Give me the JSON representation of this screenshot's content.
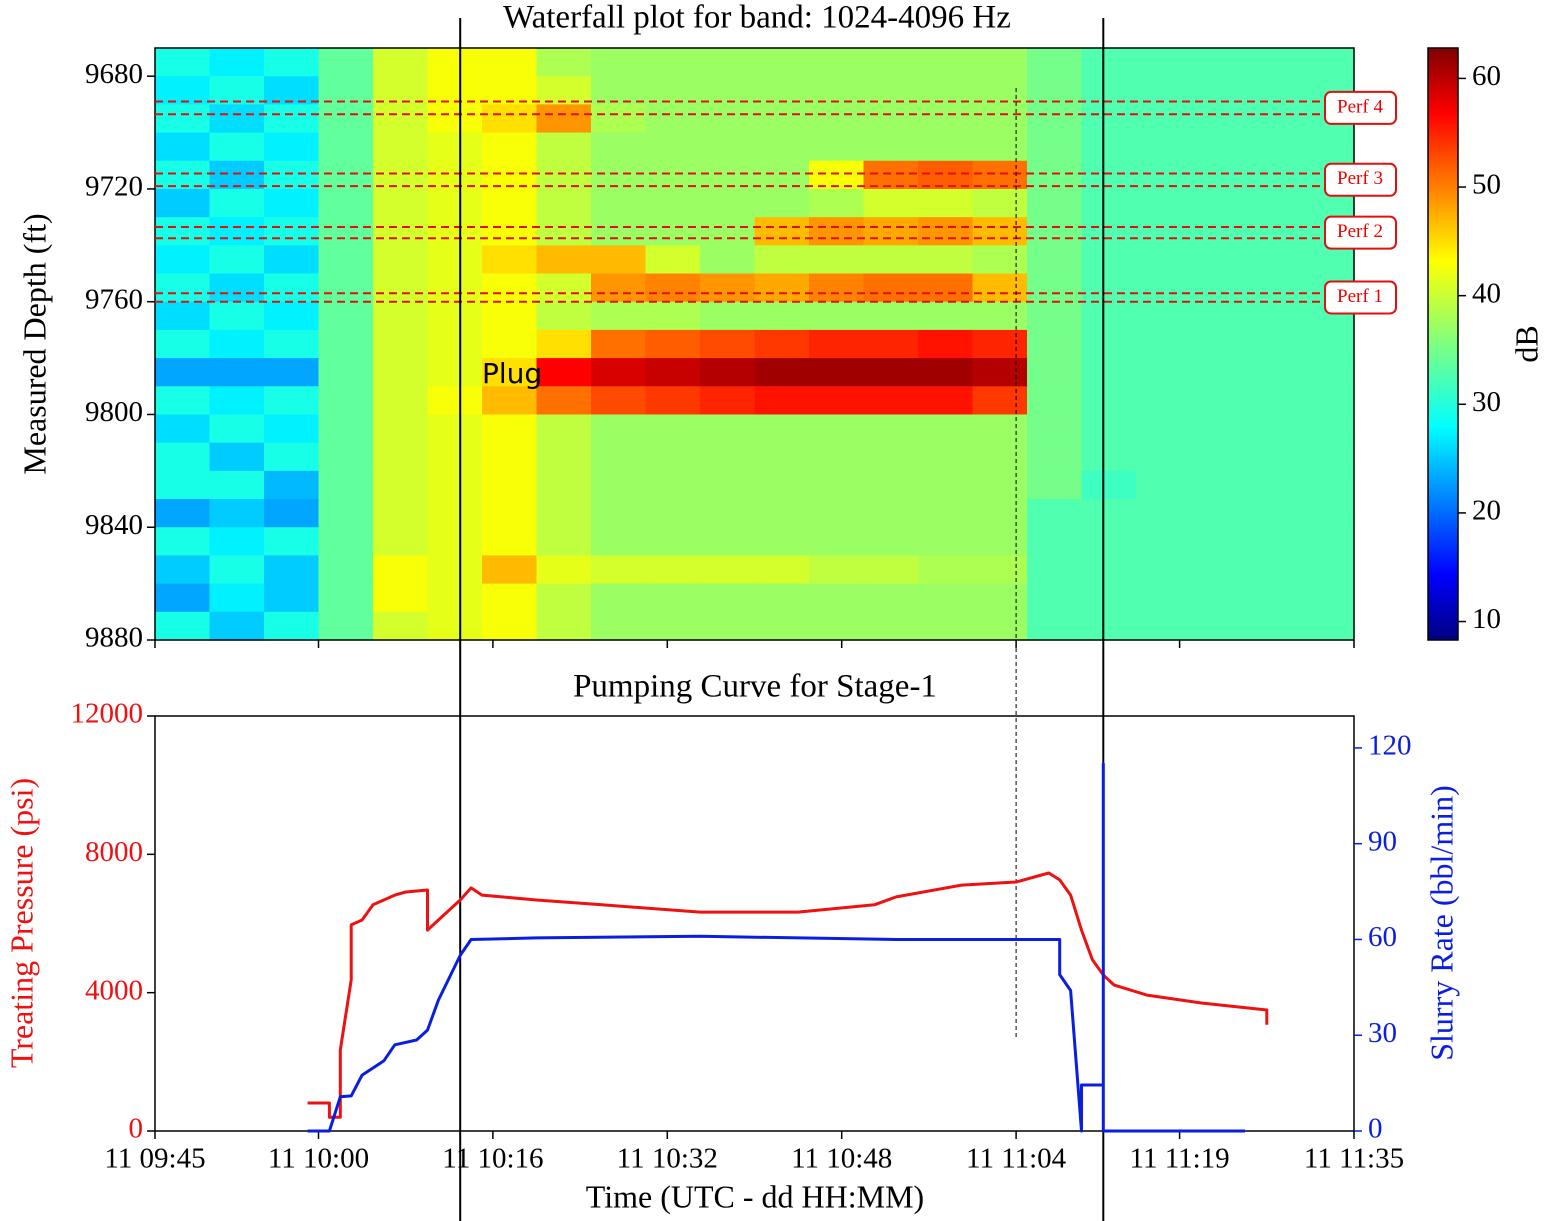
{
  "chart_data": [
    {
      "type": "heatmap",
      "title": "Waterfall plot for band: 1024-4096 Hz",
      "ylabel": "Measured Depth (ft)",
      "xlim": [
        "11 09:45",
        "11 11:35"
      ],
      "ylim": [
        9880,
        9670
      ],
      "yticks": [
        9680,
        9720,
        9760,
        9800,
        9840,
        9880
      ],
      "xbins": [
        "11 09:45",
        "11 09:50",
        "11 09:55",
        "11 10:00",
        "11 10:05",
        "11 10:10",
        "11 10:15",
        "11 10:20",
        "11 10:25",
        "11 10:30",
        "11 10:35",
        "11 10:40",
        "11 10:45",
        "11 10:50",
        "11 10:55",
        "11 11:00",
        "11 11:05",
        "11 11:10",
        "11 11:15",
        "11 11:20",
        "11 11:25",
        "11 11:30",
        "11 11:35"
      ],
      "ybins": [
        9670,
        9680,
        9690,
        9700,
        9710,
        9720,
        9730,
        9740,
        9750,
        9760,
        9770,
        9780,
        9790,
        9800,
        9810,
        9820,
        9830,
        9840,
        9850,
        9860,
        9870,
        9880
      ],
      "z": [
        [
          30,
          28,
          30,
          34,
          40,
          42,
          42,
          38,
          37,
          37,
          37,
          37,
          37,
          37,
          37,
          37,
          35,
          33,
          33,
          33,
          33,
          33
        ],
        [
          28,
          30,
          27,
          34,
          40,
          42,
          42,
          40,
          37,
          37,
          37,
          37,
          37,
          37,
          37,
          37,
          35,
          33,
          33,
          33,
          33,
          33
        ],
        [
          30,
          27,
          30,
          34,
          40,
          42,
          44,
          48,
          38,
          37,
          37,
          37,
          37,
          37,
          37,
          37,
          35,
          33,
          33,
          33,
          33,
          33
        ],
        [
          27,
          30,
          28,
          34,
          40,
          41,
          42,
          39,
          37,
          37,
          37,
          37,
          37,
          37,
          37,
          37,
          35,
          33,
          33,
          33,
          33,
          33
        ],
        [
          30,
          26,
          30,
          34,
          40,
          41,
          42,
          39,
          37,
          37,
          37,
          37,
          42,
          50,
          51,
          50,
          35,
          33,
          33,
          33,
          33,
          33
        ],
        [
          26,
          30,
          28,
          34,
          40,
          41,
          42,
          39,
          37,
          37,
          37,
          37,
          38,
          40,
          40,
          39,
          35,
          33,
          33,
          33,
          33,
          33
        ],
        [
          30,
          28,
          30,
          34,
          40,
          41,
          42,
          39,
          37,
          37,
          37,
          46,
          48,
          47,
          48,
          46,
          35,
          33,
          33,
          33,
          33,
          33
        ],
        [
          28,
          30,
          27,
          34,
          40,
          41,
          44,
          46,
          46,
          40,
          37,
          39,
          39,
          39,
          39,
          38,
          35,
          33,
          33,
          33,
          33,
          33
        ],
        [
          30,
          27,
          30,
          34,
          40,
          41,
          42,
          40,
          48,
          49,
          48,
          47,
          49,
          50,
          50,
          46,
          35,
          33,
          33,
          33,
          33,
          33
        ],
        [
          27,
          30,
          28,
          34,
          40,
          41,
          42,
          39,
          38,
          38,
          37,
          37,
          37,
          37,
          37,
          37,
          35,
          33,
          33,
          33,
          33,
          33
        ],
        [
          30,
          28,
          30,
          34,
          40,
          41,
          42,
          44,
          50,
          51,
          52,
          53,
          54,
          54,
          55,
          54,
          35,
          33,
          33,
          33,
          33,
          33
        ],
        [
          24,
          24,
          24,
          34,
          40,
          41,
          44,
          56,
          58,
          59,
          60,
          61,
          61,
          61,
          61,
          60,
          35,
          33,
          33,
          33,
          33,
          33
        ],
        [
          30,
          28,
          30,
          34,
          40,
          42,
          46,
          50,
          52,
          53,
          54,
          55,
          55,
          55,
          55,
          53,
          35,
          33,
          33,
          33,
          33,
          33
        ],
        [
          27,
          30,
          28,
          34,
          40,
          41,
          42,
          39,
          37,
          37,
          37,
          37,
          37,
          37,
          37,
          37,
          35,
          33,
          33,
          33,
          33,
          33
        ],
        [
          30,
          26,
          30,
          34,
          40,
          41,
          42,
          39,
          37,
          37,
          37,
          37,
          37,
          37,
          37,
          37,
          35,
          33,
          33,
          33,
          33,
          33
        ],
        [
          30,
          30,
          25,
          34,
          40,
          41,
          42,
          39,
          37,
          37,
          37,
          37,
          37,
          37,
          37,
          37,
          35,
          32,
          33,
          33,
          33,
          33
        ],
        [
          24,
          26,
          24,
          34,
          40,
          41,
          42,
          39,
          37,
          37,
          37,
          37,
          37,
          37,
          37,
          37,
          33,
          33,
          33,
          33,
          33,
          33
        ],
        [
          30,
          28,
          30,
          34,
          40,
          41,
          42,
          39,
          37,
          37,
          37,
          37,
          37,
          37,
          37,
          37,
          33,
          33,
          33,
          33,
          33,
          33
        ],
        [
          26,
          30,
          26,
          34,
          42,
          41,
          46,
          41,
          40,
          40,
          40,
          40,
          39,
          39,
          38,
          38,
          33,
          33,
          33,
          33,
          33,
          33
        ],
        [
          24,
          28,
          26,
          34,
          42,
          41,
          42,
          39,
          37,
          37,
          37,
          37,
          37,
          37,
          37,
          37,
          33,
          33,
          33,
          33,
          33,
          33
        ],
        [
          30,
          26,
          30,
          34,
          40,
          41,
          42,
          39,
          37,
          37,
          37,
          37,
          37,
          37,
          37,
          37,
          33,
          33,
          33,
          33,
          33,
          33
        ]
      ],
      "colormap": "jet",
      "clim": [
        8.3,
        62.8
      ],
      "cticks": [
        10,
        20,
        30,
        40,
        50,
        60
      ],
      "clabel": "dB",
      "perfs": [
        {
          "label": "Perf 1",
          "depths": [
            9757,
            9760
          ]
        },
        {
          "label": "Perf 2",
          "depths": [
            9733.5,
            9737.5
          ]
        },
        {
          "label": "Perf 3",
          "depths": [
            9714.5,
            9719
          ]
        },
        {
          "label": "Perf 4",
          "depths": [
            9689,
            9693.5
          ]
        }
      ],
      "perf_color": "#e01010",
      "annotation": {
        "text": "Plug",
        "x": "11 10:15",
        "y": 9786
      },
      "vlines": [
        "11 10:13",
        "11 11:12"
      ],
      "dashed_vline": "11 11:04"
    },
    {
      "type": "line",
      "title": "Pumping Curve for Stage-1",
      "xlabel": "Time (UTC - dd HH:MM)",
      "ylabel": "Treating Pressure (psi)",
      "y2label": "Slurry Rate (bbl/min)",
      "xlim": [
        "11 09:45",
        "11 11:35"
      ],
      "xticks": [
        "11 09:45",
        "11 10:00",
        "11 10:16",
        "11 10:32",
        "11 10:48",
        "11 11:04",
        "11 11:19",
        "11 11:35"
      ],
      "ylim": [
        0,
        12000
      ],
      "yticks": [
        0,
        4000,
        8000,
        12000
      ],
      "y2lim": [
        0,
        130
      ],
      "y2ticks": [
        0,
        30,
        60,
        90,
        120
      ],
      "series": [
        {
          "color": "#ee1111",
          "axis": "y",
          "x": [
            "11 09:59",
            "11 10:01",
            "11 10:01",
            "11 10:02",
            "11 10:02",
            "11 10:03",
            "11 10:03",
            "11 10:04",
            "11 10:05",
            "11 10:07",
            "11 10:08",
            "11 10:10",
            "11 10:10",
            "11 10:11",
            "11 10:13",
            "11 10:14",
            "11 10:15",
            "11 10:20",
            "11 10:26",
            "11 10:35",
            "11 10:44",
            "11 10:51",
            "11 10:53",
            "11 10:59",
            "11 11:04",
            "11 11:07",
            "11 11:08",
            "11 11:09",
            "11 11:10",
            "11 11:11",
            "11 11:12",
            "11 11:13",
            "11 11:16",
            "11 11:21",
            "11 11:27",
            "11 11:27"
          ],
          "values": [
            810,
            810,
            400,
            400,
            2340,
            4370,
            5960,
            6100,
            6540,
            6820,
            6910,
            6970,
            5810,
            6100,
            6680,
            7030,
            6820,
            6680,
            6540,
            6330,
            6330,
            6540,
            6770,
            7110,
            7200,
            7460,
            7260,
            6820,
            5810,
            4950,
            4510,
            4220,
            3930,
            3700,
            3500,
            3070
          ]
        },
        {
          "color": "#0a1ee0",
          "axis": "y2",
          "x": [
            "11 09:59",
            "11 10:01",
            "11 10:02",
            "11 10:03",
            "11 10:04",
            "11 10:06",
            "11 10:07",
            "11 10:09",
            "11 10:10",
            "11 10:11",
            "11 10:13",
            "11 10:14",
            "11 10:20",
            "11 10:35",
            "11 10:53",
            "11 11:08",
            "11 11:08",
            "11 11:09",
            "11 11:10",
            "11 11:10",
            "11 11:12",
            "11 11:12",
            "11 11:12",
            "11 11:12",
            "11 11:25"
          ],
          "values": [
            0,
            0,
            10.7,
            11,
            17.5,
            22,
            27,
            28.5,
            31.6,
            41,
            55,
            60,
            60.5,
            61,
            60,
            60,
            49,
            44,
            0,
            14.4,
            14.4,
            0,
            115,
            0,
            0
          ]
        }
      ]
    }
  ]
}
